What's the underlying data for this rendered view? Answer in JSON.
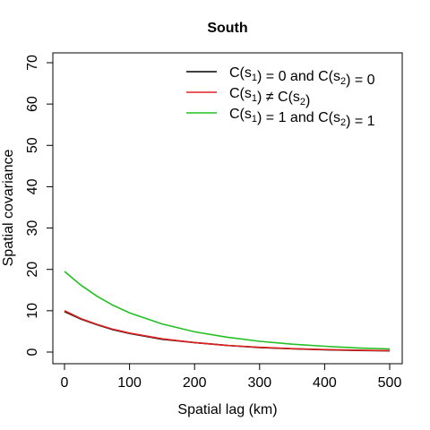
{
  "chart_data": {
    "type": "line",
    "title": "South",
    "xlabel": "Spatial lag (km)",
    "ylabel": "Spatial covariance",
    "xlim": [
      0,
      500
    ],
    "ylim": [
      0,
      70
    ],
    "x_ticks": [
      0,
      100,
      200,
      300,
      400,
      500
    ],
    "y_ticks": [
      0,
      10,
      20,
      30,
      40,
      50,
      60,
      70
    ],
    "legend_position": "top-right",
    "grid": false,
    "x": [
      0,
      25,
      50,
      75,
      100,
      150,
      200,
      250,
      300,
      350,
      400,
      450,
      500
    ],
    "series": [
      {
        "legend": {
          "a": "C(s",
          "a_sub": "1",
          "b": ") = 0 and C(s",
          "b_sub": "2",
          "c": ") = 0"
        },
        "color": "#000000",
        "values": [
          9.8,
          8.0,
          6.6,
          5.4,
          4.5,
          3.1,
          2.3,
          1.6,
          1.1,
          0.8,
          0.55,
          0.4,
          0.3
        ]
      },
      {
        "legend": {
          "a": "C(s",
          "a_sub": "1",
          "b": ") ≠ C(s",
          "b_sub": "2",
          "c": ")"
        },
        "color": "#df2020",
        "values": [
          10.0,
          8.1,
          6.7,
          5.5,
          4.6,
          3.2,
          2.3,
          1.6,
          1.15,
          0.82,
          0.6,
          0.45,
          0.35
        ]
      },
      {
        "legend": {
          "a": "C(s",
          "a_sub": "1",
          "b": ") = 1 and C(s",
          "b_sub": "2",
          "c": ") = 1"
        },
        "color": "#22c022",
        "values": [
          19.5,
          16.2,
          13.5,
          11.3,
          9.5,
          6.8,
          4.9,
          3.6,
          2.6,
          1.9,
          1.4,
          1.0,
          0.75
        ]
      }
    ]
  }
}
